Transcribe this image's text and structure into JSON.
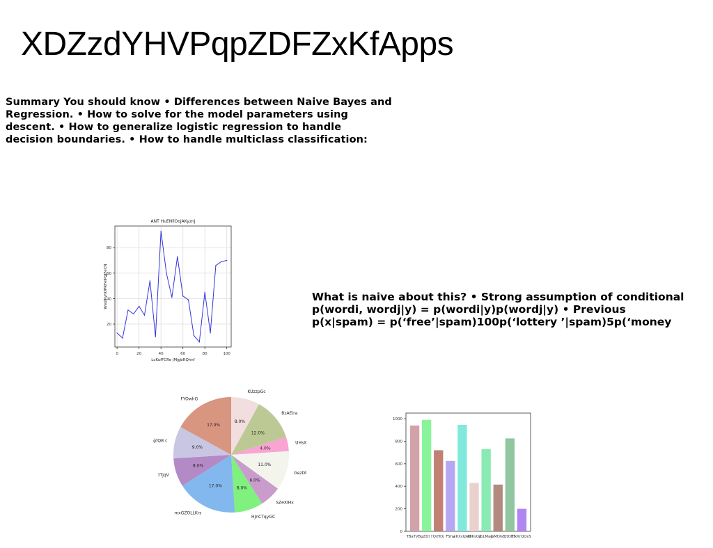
{
  "header": {
    "title": "XDZzdYHVPqpZDFZxKfApps"
  },
  "summary": {
    "lines": [
      "Summary You should know • Differences between Naive Bayes and",
      "Regression. • How to solve for the model parameters using",
      "descent. • How to generalize logistic regression to handle",
      "decision boundaries. • How to handle multiclass classification:"
    ]
  },
  "naive": {
    "lines": [
      "What is naive about this? • Strong assumption of conditional",
      "p(wordi, wordj|y) = p(wordi|y)p(wordj|y) • Previous",
      "p(x|spam) = p(‘free’|spam)100p(‘lottery ’|spam)5p(‘money"
    ]
  },
  "chart_data": [
    {
      "type": "line",
      "title": "ANT HuENllOojAKyznj",
      "xlabel": "LcKufFCRe jMjgbRQhnf",
      "ylabel": "WwjIPyhOPRFeIPgJFeCN",
      "xlim": [
        -2,
        104
      ],
      "ylim": [
        2,
        97
      ],
      "xticks": [
        0,
        20,
        40,
        60,
        80,
        100
      ],
      "yticks": [
        20,
        40,
        60,
        80
      ],
      "grid": true,
      "color": "#3333dd",
      "x": [
        0,
        5,
        10,
        15,
        20,
        25,
        30,
        35,
        40,
        45,
        50,
        55,
        60,
        65,
        70,
        75,
        80,
        85,
        90,
        95,
        100
      ],
      "y": [
        13,
        9,
        31,
        28,
        34,
        27,
        54,
        10,
        93,
        60,
        41,
        73,
        42,
        39,
        11,
        6,
        45,
        13,
        66,
        69,
        70
      ]
    },
    {
      "type": "pie",
      "slices": [
        {
          "label": "KUzzpGc",
          "value": 8.0,
          "pct": "8.0%",
          "color": "#f2dede"
        },
        {
          "label": "BzAEira",
          "value": 12.0,
          "pct": "12.0%",
          "color": "#bcc994"
        },
        {
          "label": "UHsXCu",
          "value": 4.0,
          "pct": "4.0%",
          "color": "#f9a4d2"
        },
        {
          "label": "GezDb zl",
          "value": 11.0,
          "pct": "11.0%",
          "color": "#f3f4ec"
        },
        {
          "label": "SZeXIHx",
          "value": 6.0,
          "pct": "6.0%",
          "color": "#c99ccc"
        },
        {
          "label": "HJnCTqyGC",
          "value": 8.0,
          "pct": "8.0%",
          "color": "#80f07f"
        },
        {
          "label": "mxGZOLLKrs",
          "value": 17.0,
          "pct": "17.0%",
          "color": "#82b8ee"
        },
        {
          "label": "tTjqV",
          "value": 8.0,
          "pct": "8.0%",
          "color": "#b389c6"
        },
        {
          "label": "enmnjdQB c",
          "value": 9.0,
          "pct": "9.0%",
          "color": "#c8c6e2"
        },
        {
          "label": "FYOwhG",
          "value": 17.0,
          "pct": "17.0%",
          "color": "#d8957f"
        }
      ]
    },
    {
      "type": "bar",
      "categories": [
        "TBaTVBu",
        "uZDt f",
        "QrHDj",
        "FShu",
        "wKXyIpRG",
        "XFKsQp",
        "JbLMag",
        "GMDGE",
        "dtQBF",
        "hxXrQQeS"
      ],
      "values": [
        940,
        990,
        720,
        625,
        945,
        430,
        730,
        415,
        825,
        200
      ],
      "colors": [
        "#d3a1a8",
        "#8af49a",
        "#c18071",
        "#b6a7f2",
        "#81e9dc",
        "#e9d1cd",
        "#8aeab3",
        "#b28b7e",
        "#90c6a0",
        "#b086f3"
      ],
      "ylim": [
        0,
        1050
      ],
      "yticks": [
        0,
        200,
        400,
        600,
        800,
        1000
      ]
    }
  ]
}
